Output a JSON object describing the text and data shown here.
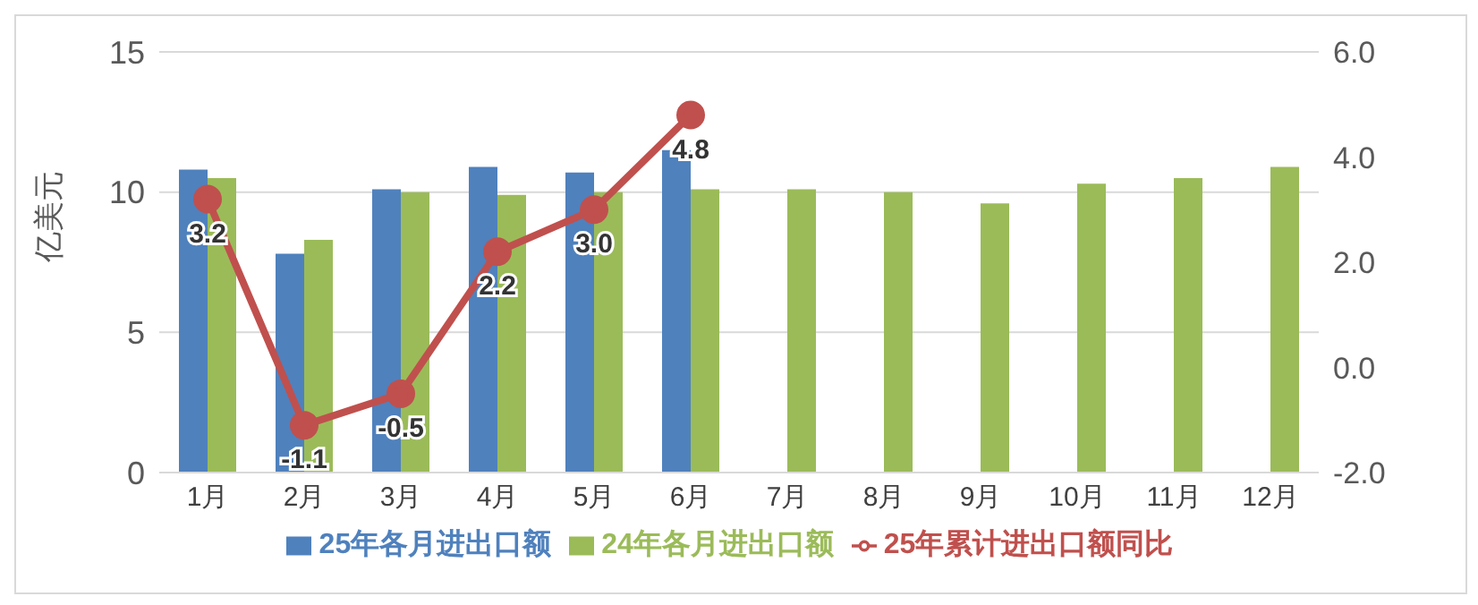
{
  "chart_data": {
    "type": "bar",
    "ylabel": "亿美元",
    "categories": [
      "1月",
      "2月",
      "3月",
      "4月",
      "5月",
      "6月",
      "7月",
      "8月",
      "9月",
      "10月",
      "11月",
      "12月"
    ],
    "series": [
      {
        "name": "25年各月进出口额",
        "color": "#4f81bd",
        "values": [
          10.8,
          7.8,
          10.1,
          10.9,
          10.7,
          11.5,
          null,
          null,
          null,
          null,
          null,
          null
        ]
      },
      {
        "name": "24年各月进出口额",
        "color": "#9bbb59",
        "values": [
          10.5,
          8.3,
          10.0,
          9.9,
          10.0,
          10.1,
          10.1,
          10.0,
          9.6,
          10.3,
          10.5,
          10.9
        ]
      },
      {
        "name": "25年累计进出口额同比",
        "type": "line",
        "axis": "y2",
        "color": "#c0504d",
        "marker": "circle",
        "value_labels": [
          "3.2",
          "-1.1",
          "-0.5",
          "2.2",
          "3.0",
          "4.8",
          null,
          null,
          null,
          null,
          null,
          null
        ],
        "values": [
          3.2,
          -1.1,
          -0.5,
          2.2,
          3.0,
          4.8,
          null,
          null,
          null,
          null,
          null,
          null
        ]
      }
    ],
    "ylim": [
      0,
      15
    ],
    "yticks": [
      0,
      5,
      10,
      15
    ],
    "y2lim": [
      -2,
      6
    ],
    "y2ticks": [
      {
        "value": -2,
        "label": "-2.0"
      },
      {
        "value": 0,
        "label": "0.0"
      },
      {
        "value": 2,
        "label": "2.0"
      },
      {
        "value": 4,
        "label": "4.0"
      },
      {
        "value": 6,
        "label": "6.0"
      }
    ],
    "grid": "y",
    "legend": "bottom"
  }
}
